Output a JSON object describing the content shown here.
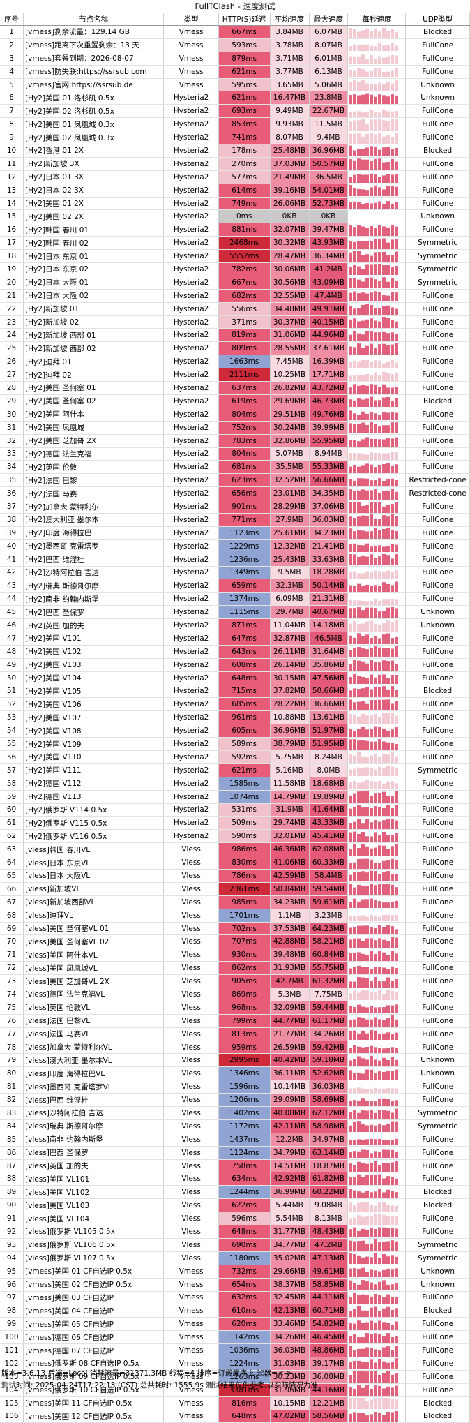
{
  "window_title": "FullTClash - 速度测试",
  "headers": [
    "序号",
    "节点名称",
    "类型",
    "HTTP(S)延迟",
    "平均速度",
    "最大速度",
    "每秒速度",
    "UDP类型"
  ],
  "rows": [
    [
      "1",
      "[vmess]剩余流量：129.14 GB",
      "Vmess",
      "667ms",
      "3.84MB",
      "6.07MB",
      "Blocked"
    ],
    [
      "2",
      "[vmess]距离下次重置剩余：13 天",
      "Vmess",
      "593ms",
      "3.78MB",
      "8.07MB",
      "FullCone"
    ],
    [
      "3",
      "[vmess]套餐到期：2026-08-07",
      "Vmess",
      "879ms",
      "3.71MB",
      "6.01MB",
      "FullCone"
    ],
    [
      "4",
      "[vmess]防失联:https://ssrsub.com",
      "Vmess",
      "621ms",
      "3.77MB",
      "6.13MB",
      "FullCone"
    ],
    [
      "5",
      "[vmess]官网:https://ssrsub.de",
      "Vmess",
      "595ms",
      "3.65MB",
      "5.06MB",
      "Unknown"
    ],
    [
      "6",
      "[Hy2]美国 01 洛杉矶 0.5x",
      "Hysteria2",
      "621ms",
      "16.47MB",
      "23.8MB",
      "Unknown"
    ],
    [
      "7",
      "[Hy2]美国 02 洛杉矶 0.5x",
      "Hysteria2",
      "693ms",
      "9.49MB",
      "22.67MB",
      "FullCone"
    ],
    [
      "8",
      "[Hy2]美国 01 凤凰城 0.3x",
      "Hysteria2",
      "853ms",
      "9.93MB",
      "11.5MB",
      "FullCone"
    ],
    [
      "9",
      "[Hy2]美国 02 凤凰城 0.3x",
      "Hysteria2",
      "741ms",
      "8.07MB",
      "9.4MB",
      "FullCone"
    ],
    [
      "10",
      "[Hy2]香港 01 2X",
      "Hysteria2",
      "178ms",
      "25.48MB",
      "36.96MB",
      "Blocked"
    ],
    [
      "11",
      "[Hy2]新加坡 3X",
      "Hysteria2",
      "270ms",
      "37.03MB",
      "50.57MB",
      "FullCone"
    ],
    [
      "12",
      "[Hy2]日本 01 3X",
      "Hysteria2",
      "577ms",
      "21.49MB",
      "36.5MB",
      "FullCone"
    ],
    [
      "13",
      "[Hy2]日本 02 3X",
      "Hysteria2",
      "614ms",
      "39.16MB",
      "54.01MB",
      "FullCone"
    ],
    [
      "14",
      "[Hy2]美国 01 2X",
      "Hysteria2",
      "749ms",
      "26.06MB",
      "52.73MB",
      "FullCone"
    ],
    [
      "15",
      "[Hy2]美国 02 2X",
      "Hysteria2",
      "0ms",
      "0KB",
      "0KB",
      "Unknown"
    ],
    [
      "16",
      "[Hy2]韩国 春川 01",
      "Hysteria2",
      "881ms",
      "32.07MB",
      "39.47MB",
      "FullCone"
    ],
    [
      "17",
      "[Hy2]韩国 春川 02",
      "Hysteria2",
      "2468ms",
      "30.32MB",
      "43.93MB",
      "Symmetric"
    ],
    [
      "18",
      "[Hy2]日本 东京 01",
      "Hysteria2",
      "5552ms",
      "28.47MB",
      "36.34MB",
      "Symmetric"
    ],
    [
      "19",
      "[Hy2]日本 东京 02",
      "Hysteria2",
      "782ms",
      "30.06MB",
      "41.2MB",
      "Symmetric"
    ],
    [
      "20",
      "[Hy2]日本 大阪 01",
      "Hysteria2",
      "667ms",
      "30.56MB",
      "43.09MB",
      "Symmetric"
    ],
    [
      "21",
      "[Hy2]日本 大阪 02",
      "Hysteria2",
      "682ms",
      "32.55MB",
      "47.4MB",
      "FullCone"
    ],
    [
      "22",
      "[Hy2]新加坡 01",
      "Hysteria2",
      "556ms",
      "34.48MB",
      "49.91MB",
      "FullCone"
    ],
    [
      "23",
      "[Hy2]新加坡 02",
      "Hysteria2",
      "371ms",
      "30.37MB",
      "40.15MB",
      "FullCone"
    ],
    [
      "24",
      "[Hy2]新加坡 西部 01",
      "Hysteria2",
      "819ms",
      "31.06MB",
      "44.96MB",
      "FullCone"
    ],
    [
      "25",
      "[Hy2]新加坡 西部 02",
      "Hysteria2",
      "809ms",
      "28.55MB",
      "37.61MB",
      "FullCone"
    ],
    [
      "26",
      "[Hy2]迪拜 01",
      "Hysteria2",
      "1663ms",
      "7.45MB",
      "16.39MB",
      "FullCone"
    ],
    [
      "27",
      "[Hy2]迪拜 02",
      "Hysteria2",
      "2111ms",
      "10.25MB",
      "17.71MB",
      "FullCone"
    ],
    [
      "28",
      "[Hy2]美国 圣何塞 01",
      "Hysteria2",
      "637ms",
      "26.82MB",
      "43.72MB",
      "FullCone"
    ],
    [
      "29",
      "[Hy2]美国 圣何塞 02",
      "Hysteria2",
      "619ms",
      "29.69MB",
      "46.73MB",
      "Blocked"
    ],
    [
      "30",
      "[Hy2]美国 阿什本",
      "Hysteria2",
      "804ms",
      "29.51MB",
      "49.76MB",
      "FullCone"
    ],
    [
      "31",
      "[Hy2]美国 凤凰城",
      "Hysteria2",
      "752ms",
      "30.24MB",
      "39.99MB",
      "FullCone"
    ],
    [
      "32",
      "[Hy2]美国 芝加哥 2X",
      "Hysteria2",
      "783ms",
      "32.86MB",
      "55.95MB",
      "FullCone"
    ],
    [
      "33",
      "[Hy2]德国 法兰克福",
      "Hysteria2",
      "804ms",
      "5.07MB",
      "8.94MB",
      "FullCone"
    ],
    [
      "34",
      "[Hy2]英国 伦敦",
      "Hysteria2",
      "681ms",
      "35.5MB",
      "55.33MB",
      "FullCone"
    ],
    [
      "35",
      "[Hy2]法国 巴黎",
      "Hysteria2",
      "623ms",
      "32.52MB",
      "56.66MB",
      "Restricted-cone"
    ],
    [
      "36",
      "[Hy2]法国 马赛",
      "Hysteria2",
      "656ms",
      "23.01MB",
      "34.35MB",
      "Restricted-cone"
    ],
    [
      "37",
      "[Hy2]加拿大 蒙特利尔",
      "Hysteria2",
      "901ms",
      "28.29MB",
      "37.06MB",
      "FullCone"
    ],
    [
      "38",
      "[Hy2]澳大利亚 墨尔本",
      "Hysteria2",
      "771ms",
      "27.9MB",
      "36.03MB",
      "FullCone"
    ],
    [
      "39",
      "[Hy2]印度 海得拉巴",
      "Hysteria2",
      "1123ms",
      "25.61MB",
      "34.23MB",
      "FullCone"
    ],
    [
      "40",
      "[Hy2]墨西哥 克雷塔罗",
      "Hysteria2",
      "1229ms",
      "12.32MB",
      "21.41MB",
      "FullCone"
    ],
    [
      "41",
      "[Hy2]巴西 维涅杜",
      "Hysteria2",
      "1236ms",
      "25.43MB",
      "33.63MB",
      "FullCone"
    ],
    [
      "42",
      "[Hy2]沙特阿拉伯 吉达",
      "Hysteria2",
      "1349ms",
      "9.5MB",
      "18.28MB",
      "FullCone"
    ],
    [
      "43",
      "[Hy2]瑞典 斯德哥尔摩",
      "Hysteria2",
      "659ms",
      "32.3MB",
      "50.14MB",
      "FullCone"
    ],
    [
      "44",
      "[Hy2]南非 约翰内斯堡",
      "Hysteria2",
      "1374ms",
      "6.09MB",
      "21.31MB",
      "FullCone"
    ],
    [
      "45",
      "[Hy2]巴西 圣保罗",
      "Hysteria2",
      "1115ms",
      "29.7MB",
      "40.67MB",
      "Unknown"
    ],
    [
      "46",
      "[Hy2]英国 加的夫",
      "Hysteria2",
      "871ms",
      "11.04MB",
      "14.18MB",
      "Unknown"
    ],
    [
      "47",
      "[Hy2]美国 V101",
      "Hysteria2",
      "647ms",
      "32.87MB",
      "46.5MB",
      "FullCone"
    ],
    [
      "48",
      "[Hy2]美国 V102",
      "Hysteria2",
      "643ms",
      "26.11MB",
      "31.64MB",
      "FullCone"
    ],
    [
      "49",
      "[Hy2]美国 V103",
      "Hysteria2",
      "608ms",
      "26.14MB",
      "35.86MB",
      "FullCone"
    ],
    [
      "50",
      "[Hy2]美国 V104",
      "Hysteria2",
      "648ms",
      "30.15MB",
      "47.56MB",
      "FullCone"
    ],
    [
      "51",
      "[Hy2]美国 V105",
      "Hysteria2",
      "715ms",
      "37.82MB",
      "50.66MB",
      "Blocked"
    ],
    [
      "52",
      "[Hy2]美国 V106",
      "Hysteria2",
      "685ms",
      "28.22MB",
      "36.66MB",
      "FullCone"
    ],
    [
      "53",
      "[Hy2]美国 V107",
      "Hysteria2",
      "961ms",
      "10.88MB",
      "13.61MB",
      "FullCone"
    ],
    [
      "54",
      "[Hy2]美国 V108",
      "Hysteria2",
      "605ms",
      "36.96MB",
      "51.97MB",
      "FullCone"
    ],
    [
      "55",
      "[Hy2]美国 V109",
      "Hysteria2",
      "589ms",
      "38.79MB",
      "51.95MB",
      "FullCone"
    ],
    [
      "56",
      "[Hy2]美国 V110",
      "Hysteria2",
      "592ms",
      "5.75MB",
      "8.24MB",
      "FullCone"
    ],
    [
      "57",
      "[Hy2]美国 V111",
      "Hysteria2",
      "621ms",
      "5.16MB",
      "8.0MB",
      "Symmetric"
    ],
    [
      "58",
      "[Hy2]德国 V112",
      "Hysteria2",
      "1585ms",
      "11.58MB",
      "18.68MB",
      "FullCone"
    ],
    [
      "59",
      "[Hy2]德国 V113",
      "Hysteria2",
      "1074ms",
      "14.79MB",
      "19.89MB",
      "FullCone"
    ],
    [
      "60",
      "[Hy2]俄罗斯 V114 0.5x",
      "Hysteria2",
      "531ms",
      "31.9MB",
      "41.64MB",
      "FullCone"
    ],
    [
      "61",
      "[Hy2]俄罗斯 V115 0.5x",
      "Hysteria2",
      "509ms",
      "29.74MB",
      "43.33MB",
      "FullCone"
    ],
    [
      "62",
      "[Hy2]俄罗斯 V116 0.5x",
      "Hysteria2",
      "590ms",
      "32.01MB",
      "45.41MB",
      "FullCone"
    ],
    [
      "63",
      "[vless]韩国 春川VL",
      "Vless",
      "986ms",
      "46.36MB",
      "62.08MB",
      "FullCone"
    ],
    [
      "64",
      "[vless]日本 东京VL",
      "Vless",
      "830ms",
      "41.06MB",
      "60.33MB",
      "FullCone"
    ],
    [
      "65",
      "[vless]日本 大阪VL",
      "Vless",
      "786ms",
      "42.59MB",
      "58.4MB",
      "FullCone"
    ],
    [
      "66",
      "[vless]新加坡VL",
      "Vless",
      "2361ms",
      "50.84MB",
      "59.54MB",
      "FullCone"
    ],
    [
      "67",
      "[vless]新加坡西部VL",
      "Vless",
      "985ms",
      "34.23MB",
      "59.61MB",
      "FullCone"
    ],
    [
      "68",
      "[vless]迪拜VL",
      "Vless",
      "1701ms",
      "1.1MB",
      "3.23MB",
      "FullCone"
    ],
    [
      "69",
      "[vless]美国 圣何塞VL 01",
      "Vless",
      "702ms",
      "37.53MB",
      "64.23MB",
      "FullCone"
    ],
    [
      "70",
      "[vless]美国 圣何塞VL 02",
      "Vless",
      "707ms",
      "42.88MB",
      "58.21MB",
      "FullCone"
    ],
    [
      "71",
      "[vless]美国 阿什本VL",
      "Vless",
      "930ms",
      "39.48MB",
      "60.84MB",
      "FullCone"
    ],
    [
      "72",
      "[vless]美国 凤凰城VL",
      "Vless",
      "862ms",
      "31.93MB",
      "55.75MB",
      "FullCone"
    ],
    [
      "73",
      "[vless]美国 芝加哥VL 2X",
      "Vless",
      "905ms",
      "42.7MB",
      "61.32MB",
      "FullCone"
    ],
    [
      "74",
      "[vless]德国 法兰克福VL",
      "Vless",
      "869ms",
      "5.3MB",
      "7.75MB",
      "FullCone"
    ],
    [
      "75",
      "[vless]英国 伦敦VL",
      "Vless",
      "968ms",
      "32.09MB",
      "59.44MB",
      "FullCone"
    ],
    [
      "76",
      "[vless]法国 巴黎VL",
      "Vless",
      "799ms",
      "44.77MB",
      "61.17MB",
      "FullCone"
    ],
    [
      "77",
      "[vless]法国 马赛VL",
      "Vless",
      "813ms",
      "21.77MB",
      "34.26MB",
      "FullCone"
    ],
    [
      "78",
      "[vless]加拿大 蒙特利尔VL",
      "Vless",
      "959ms",
      "26.59MB",
      "59.42MB",
      "FullCone"
    ],
    [
      "79",
      "[vless]澳大利亚 墨尔本VL",
      "Vless",
      "2995ms",
      "40.42MB",
      "59.18MB",
      "Unknown"
    ],
    [
      "80",
      "[vless]印度 海得拉巴VL",
      "Vless",
      "1346ms",
      "36.11MB",
      "52.62MB",
      "Unknown"
    ],
    [
      "81",
      "[vless]墨西哥 克雷塔罗VL",
      "Vless",
      "1596ms",
      "10.14MB",
      "36.03MB",
      "FullCone"
    ],
    [
      "82",
      "[vless]巴西 维涅杜",
      "Vless",
      "1206ms",
      "29.09MB",
      "58.69MB",
      "FullCone"
    ],
    [
      "83",
      "[vless]沙特阿拉伯 吉达",
      "Vless",
      "1402ms",
      "40.08MB",
      "62.12MB",
      "Symmetric"
    ],
    [
      "84",
      "[vless]瑞典 斯德哥尔摩",
      "Vless",
      "1172ms",
      "42.11MB",
      "58.98MB",
      "Symmetric"
    ],
    [
      "85",
      "[vless]南非 约翰内斯堡",
      "Vless",
      "1437ms",
      "12.2MB",
      "34.97MB",
      "FullCone"
    ],
    [
      "86",
      "[vless]巴西 圣保罗",
      "Vless",
      "1124ms",
      "34.79MB",
      "63.14MB",
      "FullCone"
    ],
    [
      "87",
      "[vless]英国 加的夫",
      "Vless",
      "758ms",
      "14.51MB",
      "18.87MB",
      "FullCone"
    ],
    [
      "88",
      "[vless]美国 VL101",
      "Vless",
      "634ms",
      "42.92MB",
      "61.82MB",
      "FullCone"
    ],
    [
      "89",
      "[vless]美国 VL102",
      "Vless",
      "1244ms",
      "36.99MB",
      "60.22MB",
      "Blocked"
    ],
    [
      "90",
      "[vless]美国 VL103",
      "Vless",
      "622ms",
      "5.44MB",
      "9.08MB",
      "Blocked"
    ],
    [
      "91",
      "[vless]美国 VL104",
      "Vless",
      "596ms",
      "5.54MB",
      "8.13MB",
      "FullCone"
    ],
    [
      "92",
      "[vless]俄罗斯 VL105 0.5x",
      "Vless",
      "648ms",
      "31.77MB",
      "48.43MB",
      "FullCone"
    ],
    [
      "93",
      "[vless]俄罗斯 VL106 0.5x",
      "Vless",
      "690ms",
      "34.77MB",
      "47.2MB",
      "Symmetric"
    ],
    [
      "94",
      "[vless]俄罗斯 VL107 0.5x",
      "Vless",
      "1180ms",
      "35.02MB",
      "47.13MB",
      "Symmetric"
    ],
    [
      "95",
      "[vmess]美国 01 CF自选IP 0.5x",
      "Vmess",
      "732ms",
      "29.66MB",
      "49.61MB",
      "Unknown"
    ],
    [
      "96",
      "[vmess]美国 02 CF自选IP 0.5x",
      "Vmess",
      "654ms",
      "38.37MB",
      "58.85MB",
      "Unknown"
    ],
    [
      "97",
      "[vmess]美国 03 CF自选IP",
      "Vmess",
      "632ms",
      "32.45MB",
      "44.11MB",
      "FullCone"
    ],
    [
      "98",
      "[vmess]美国 04 CF自选IP",
      "Vmess",
      "610ms",
      "42.13MB",
      "60.71MB",
      "Blocked"
    ],
    [
      "99",
      "[vmess]美国 05 CF自选IP",
      "Vmess",
      "620ms",
      "33.46MB",
      "54.82MB",
      "FullCone"
    ],
    [
      "100",
      "[vmess]德国 06 CF自选IP",
      "Vmess",
      "1142ms",
      "34.26MB",
      "46.45MB",
      "FullCone"
    ],
    [
      "101",
      "[vmess]德国 07 CF自选IP",
      "Vmess",
      "1036ms",
      "36.03MB",
      "48.86MB",
      "FullCone"
    ],
    [
      "102",
      "[vmess]俄罗斯 08 CF自选IP 0.5x",
      "Vmess",
      "1224ms",
      "31.03MB",
      "39.17MB",
      "FullCone"
    ],
    [
      "103",
      "[vmess]俄罗斯 09 CF自选IP 0.5x",
      "Vmess",
      "1263ms",
      "30.23MB",
      "36.08MB",
      "FullCone"
    ],
    [
      "104",
      "[vmess]俄罗斯 10 CF自选IP 0.5x",
      "Vmess",
      "3381ms",
      "31.96MB",
      "44.16MB",
      "FullCone"
    ],
    [
      "105",
      "[vmess]美国 11 CF自选IP 0.5x",
      "Vmess",
      "816ms",
      "10.15MB",
      "12.21MB",
      "Blocked"
    ],
    [
      "106",
      "[vmess]美国 12 CF自选IP 0.5x",
      "Vmess",
      "648ms",
      "47.02MB",
      "58.56MB",
      "Blocked"
    ]
  ],
  "footer": {
    "line1": "版本=3.6.13  后端=Local  消耗流量=31371.3MB  线程=4  排序=订阅原序  过滤器=<->",
    "line2": "测试时间: 2025-04-24T17:22:13 (CST) 总共耗时: 1555.9s 测试结果仅供参考,以实际情况为准"
  }
}
